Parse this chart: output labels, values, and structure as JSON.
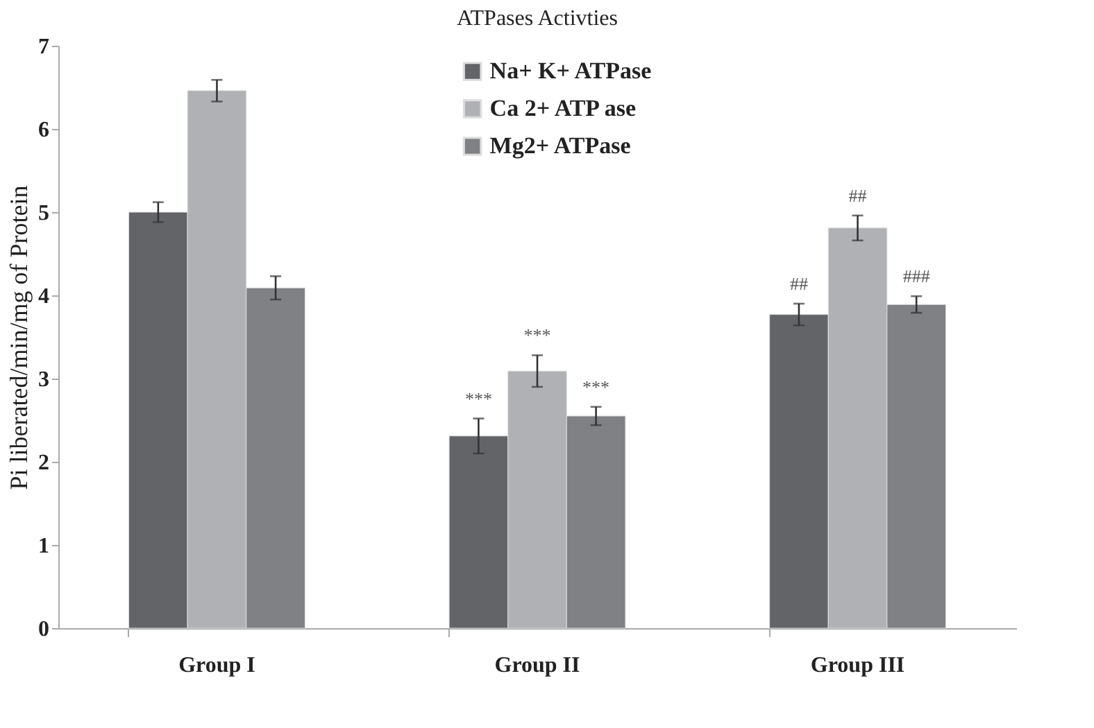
{
  "chart_data": {
    "type": "bar",
    "title": "ATPases Activties",
    "ylabel": "Pi liberated/min/mg of Protein",
    "categories": [
      "Group I",
      "Group II",
      "Group III"
    ],
    "series": [
      {
        "name": "Na+ K+ ATPase",
        "color": "#636468",
        "values": [
          5.0,
          2.31,
          3.77
        ],
        "errors": [
          0.12,
          0.21,
          0.13
        ],
        "value_labels": [
          null,
          "***",
          "##"
        ]
      },
      {
        "name": "Ca 2+ ATP ase",
        "color": "#b0b1b5",
        "values": [
          6.46,
          3.09,
          4.81
        ],
        "errors": [
          0.13,
          0.19,
          0.15
        ],
        "value_labels": [
          null,
          "***",
          "##"
        ]
      },
      {
        "name": "Mg2+ ATPase",
        "color": "#808185",
        "values": [
          4.09,
          2.55,
          3.89
        ],
        "errors": [
          0.14,
          0.11,
          0.1
        ],
        "value_labels": [
          null,
          "***",
          "###"
        ]
      }
    ],
    "ylim": [
      0,
      7
    ],
    "yticks": [
      0,
      1,
      2,
      3,
      4,
      5,
      6,
      7
    ],
    "grid": false,
    "legend": "top"
  }
}
